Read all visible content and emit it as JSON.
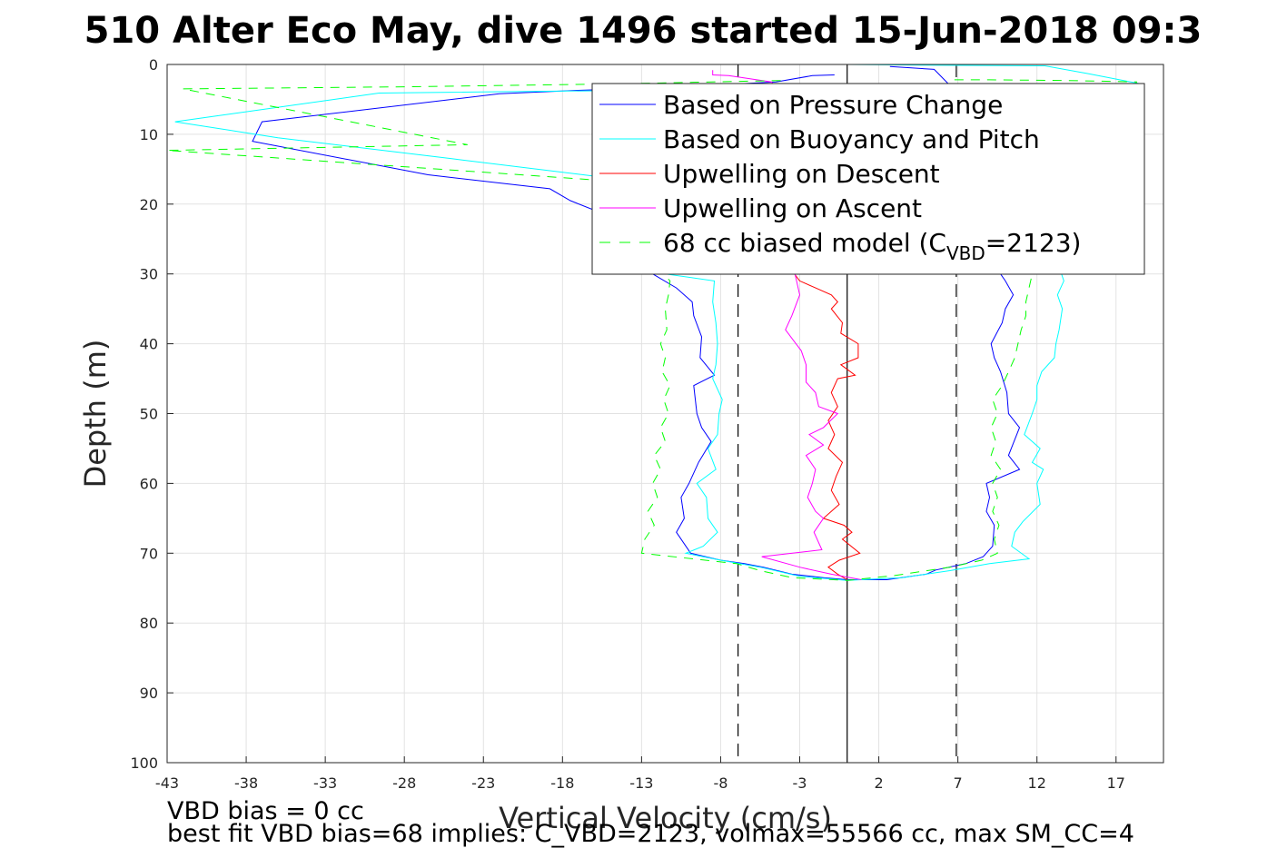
{
  "chart_data": {
    "type": "line",
    "title": "510 Alter Eco May, dive 1496 started 15-Jun-2018 09:3",
    "xlabel": "Vertical Velocity (cm/s)",
    "ylabel": "Depth (m)",
    "xlim": [
      -43,
      20
    ],
    "ylim": [
      0,
      100
    ],
    "y_reversed": true,
    "grid": true,
    "xticks": [
      -43,
      -38,
      -33,
      -28,
      -23,
      -18,
      -13,
      -8,
      -3,
      2,
      7,
      12,
      17
    ],
    "xtick_labels": [
      "-43",
      "-38",
      "-33",
      "-28",
      "-23",
      "-18",
      "-13",
      "-8",
      "-3",
      "2",
      "7",
      "12",
      "17"
    ],
    "yticks": [
      0,
      10,
      20,
      30,
      40,
      50,
      60,
      70,
      80,
      90,
      100
    ],
    "ytick_labels": [
      "0",
      "10",
      "20",
      "30",
      "40",
      "50",
      "60",
      "70",
      "80",
      "90",
      "100"
    ],
    "reference_lines": [
      {
        "x": 0,
        "style": "solid",
        "color": "#000000"
      },
      {
        "x": -6.9,
        "style": "dashed",
        "color": "#000000"
      },
      {
        "x": 6.9,
        "style": "dashed",
        "color": "#000000"
      }
    ],
    "series": [
      {
        "name": "Based on Pressure Change",
        "color": "#0000ff",
        "dash": "",
        "points": [
          [
            -0.8,
            1.5
          ],
          [
            -2.2,
            1.6
          ],
          [
            -4.5,
            2.5
          ],
          [
            -11.5,
            3.3
          ],
          [
            -17,
            3.7
          ],
          [
            -22,
            4.2
          ],
          [
            -37,
            8.2
          ],
          [
            -37.6,
            11
          ],
          [
            -26.5,
            15.8
          ],
          [
            -18.8,
            17.8
          ],
          [
            -17.5,
            19.5
          ],
          [
            -12.5,
            24
          ],
          [
            -12.3,
            30
          ],
          [
            -10.8,
            32
          ],
          [
            -9.8,
            34
          ],
          [
            -9.7,
            36
          ],
          [
            -9.2,
            39
          ],
          [
            -9.3,
            42
          ],
          [
            -8.4,
            44.5
          ],
          [
            -9.7,
            46
          ],
          [
            -9.5,
            50
          ],
          [
            -9.2,
            52
          ],
          [
            -8.6,
            54
          ],
          [
            -9.4,
            57
          ],
          [
            -10.0,
            60
          ],
          [
            -10.5,
            62
          ],
          [
            -10.3,
            65
          ],
          [
            -10.8,
            67
          ],
          [
            -9.9,
            70
          ],
          [
            -8.0,
            71
          ],
          [
            -6.5,
            71.5
          ],
          [
            -5.3,
            72
          ],
          [
            -3.5,
            73
          ],
          [
            -1.5,
            73.5
          ],
          [
            0,
            73.8
          ],
          [
            2.5,
            73.8
          ],
          [
            5,
            73
          ],
          [
            5.6,
            72.4
          ],
          [
            7.5,
            71.5
          ],
          [
            8.6,
            70.5
          ],
          [
            9.2,
            69
          ],
          [
            9.3,
            66
          ],
          [
            8.8,
            64
          ],
          [
            9.0,
            62
          ],
          [
            8.8,
            60
          ],
          [
            10.9,
            58
          ],
          [
            10.2,
            56
          ],
          [
            10.9,
            52
          ],
          [
            10.2,
            50
          ],
          [
            10.1,
            47
          ],
          [
            9.7,
            44
          ],
          [
            9.3,
            42
          ],
          [
            9.1,
            40
          ],
          [
            9.8,
            37
          ],
          [
            10.0,
            35
          ],
          [
            10.5,
            33
          ],
          [
            10.0,
            31
          ],
          [
            9.7,
            30
          ],
          [
            6.8,
            24
          ],
          [
            6.5,
            3
          ],
          [
            5.5,
            0.7
          ],
          [
            2.7,
            0.3
          ]
        ]
      },
      {
        "name": "Based on Buoyancy and Pitch",
        "color": "#00ffff",
        "dash": "",
        "points": [
          [
            -4.8,
            3.2
          ],
          [
            -9,
            3.6
          ],
          [
            -29.6,
            4.1
          ],
          [
            -42.5,
            8.2
          ],
          [
            -36,
            10.5
          ],
          [
            -25,
            13.5
          ],
          [
            -16,
            16
          ],
          [
            -14,
            18
          ],
          [
            -12.5,
            20
          ],
          [
            -11.7,
            26
          ],
          [
            -11.5,
            30
          ],
          [
            -8.4,
            31
          ],
          [
            -8.5,
            34
          ],
          [
            -8.3,
            37
          ],
          [
            -8.2,
            40
          ],
          [
            -8.3,
            43
          ],
          [
            -8.5,
            45
          ],
          [
            -7.9,
            48
          ],
          [
            -8.1,
            50
          ],
          [
            -8.2,
            53
          ],
          [
            -8.8,
            55
          ],
          [
            -8.3,
            58
          ],
          [
            -9.5,
            60
          ],
          [
            -8.9,
            62
          ],
          [
            -8.8,
            65
          ],
          [
            -8.2,
            67
          ],
          [
            -9.1,
            69
          ],
          [
            -10.2,
            70
          ],
          [
            -8.0,
            71
          ],
          [
            -5.5,
            72
          ],
          [
            -3,
            73.3
          ],
          [
            0,
            73.9
          ],
          [
            3.5,
            73.5
          ],
          [
            6.5,
            72.5
          ],
          [
            9,
            71.5
          ],
          [
            11.5,
            70.8
          ],
          [
            10.4,
            69
          ],
          [
            10.6,
            67
          ],
          [
            11.1,
            65.5
          ],
          [
            12.2,
            63
          ],
          [
            12.0,
            60
          ],
          [
            12.4,
            58
          ],
          [
            11.7,
            57
          ],
          [
            12.2,
            55
          ],
          [
            11.2,
            53
          ],
          [
            11.7,
            50
          ],
          [
            12.0,
            48
          ],
          [
            12.0,
            46
          ],
          [
            12.3,
            44
          ],
          [
            13.1,
            42
          ],
          [
            13.2,
            40
          ],
          [
            13.4,
            38
          ],
          [
            13.6,
            35
          ],
          [
            13.3,
            33
          ],
          [
            13.7,
            31
          ],
          [
            13.4,
            29
          ],
          [
            14.5,
            26
          ],
          [
            16.8,
            15
          ],
          [
            18.6,
            2.8
          ],
          [
            15.2,
            1.3
          ],
          [
            12.5,
            0.2
          ],
          [
            5,
            0.1
          ],
          [
            0,
            0
          ]
        ]
      },
      {
        "name": "Upwelling on Descent",
        "color": "#ff0000",
        "dash": "",
        "points": [
          [
            -3.5,
            29.5
          ],
          [
            -3.0,
            31
          ],
          [
            -2.0,
            32
          ],
          [
            -1.0,
            33
          ],
          [
            -0.6,
            34
          ],
          [
            -1.0,
            35
          ],
          [
            -0.3,
            37
          ],
          [
            -0.4,
            38.5
          ],
          [
            0.7,
            40
          ],
          [
            0.7,
            42
          ],
          [
            -0.4,
            43
          ],
          [
            0.5,
            44.5
          ],
          [
            -0.6,
            45
          ],
          [
            -1.0,
            47
          ],
          [
            -0.6,
            49
          ],
          [
            -1.2,
            51
          ],
          [
            -0.8,
            53
          ],
          [
            -1.2,
            55
          ],
          [
            -0.3,
            57
          ],
          [
            -0.7,
            59
          ],
          [
            -1.0,
            61
          ],
          [
            -0.5,
            63
          ],
          [
            -1.5,
            65
          ],
          [
            -0.2,
            66
          ],
          [
            0.3,
            67
          ],
          [
            -0.3,
            68
          ],
          [
            0.8,
            70
          ],
          [
            -0.5,
            71
          ],
          [
            -1.2,
            72
          ],
          [
            -0.6,
            73
          ],
          [
            0,
            73.8
          ]
        ]
      },
      {
        "name": "Upwelling on Ascent",
        "color": "#ff00ff",
        "dash": "",
        "points": [
          [
            -8.5,
            0.8
          ],
          [
            -8.5,
            1.5
          ],
          [
            -7.5,
            1.6
          ],
          [
            -4.8,
            2.5
          ],
          [
            -4.5,
            3.2
          ],
          [
            -3.3,
            30
          ],
          [
            -3.0,
            33
          ],
          [
            -3.5,
            36
          ],
          [
            -3.9,
            38
          ],
          [
            -3.4,
            39.5
          ],
          [
            -2.9,
            41
          ],
          [
            -2.6,
            43
          ],
          [
            -2.6,
            45.5
          ],
          [
            -2.0,
            47
          ],
          [
            -1.8,
            49
          ],
          [
            -0.6,
            50
          ],
          [
            -1.5,
            52
          ],
          [
            -2.4,
            53
          ],
          [
            -1.5,
            54.5
          ],
          [
            -2.6,
            56
          ],
          [
            -2.0,
            58
          ],
          [
            -2.2,
            60
          ],
          [
            -2.5,
            62
          ],
          [
            -2.0,
            64
          ],
          [
            -1.5,
            65
          ],
          [
            -2.1,
            67
          ],
          [
            -1.6,
            69.5
          ],
          [
            -5.4,
            70.5
          ],
          [
            -3.0,
            72
          ],
          [
            -1.0,
            73
          ],
          [
            0.9,
            73.8
          ]
        ]
      },
      {
        "name": "68 cc biased model (C_VBD=2123)",
        "color": "#00ff00",
        "dash": "10,8",
        "points": [
          [
            -4.2,
            2.3
          ],
          [
            -15,
            2.8
          ],
          [
            -28,
            3.2
          ],
          [
            -42,
            3.5
          ],
          [
            -24,
            11.5
          ],
          [
            -43,
            12.3
          ],
          [
            -13,
            17
          ],
          [
            -12.6,
            18
          ],
          [
            -12.4,
            20
          ],
          [
            -12.0,
            26
          ],
          [
            -11.6,
            30
          ],
          [
            -11.2,
            31
          ],
          [
            -11.3,
            33
          ],
          [
            -11.5,
            35
          ],
          [
            -11.4,
            38
          ],
          [
            -11.8,
            40
          ],
          [
            -11.5,
            42
          ],
          [
            -11.7,
            44
          ],
          [
            -11.2,
            46
          ],
          [
            -11.6,
            48
          ],
          [
            -11.3,
            50
          ],
          [
            -11.8,
            52
          ],
          [
            -11.5,
            54
          ],
          [
            -12.2,
            56
          ],
          [
            -11.8,
            58
          ],
          [
            -12.3,
            60
          ],
          [
            -12.0,
            62
          ],
          [
            -12.6,
            64
          ],
          [
            -12.2,
            66
          ],
          [
            -12.8,
            68
          ],
          [
            -13.0,
            70
          ],
          [
            -7.0,
            71.5
          ],
          [
            -5.5,
            72.5
          ],
          [
            -3.5,
            73.5
          ],
          [
            0,
            73.9
          ],
          [
            3,
            73.2
          ],
          [
            6.5,
            72
          ],
          [
            8.5,
            71
          ],
          [
            9.5,
            70
          ],
          [
            9.3,
            68
          ],
          [
            9.6,
            66
          ],
          [
            9.2,
            64
          ],
          [
            9.5,
            62
          ],
          [
            9.2,
            60
          ],
          [
            9.7,
            58
          ],
          [
            9.1,
            56
          ],
          [
            9.4,
            54
          ],
          [
            9.1,
            52
          ],
          [
            9.5,
            50
          ],
          [
            9.2,
            48
          ],
          [
            9.8,
            46
          ],
          [
            10.2,
            44
          ],
          [
            10.6,
            42
          ],
          [
            10.8,
            40
          ],
          [
            11.0,
            38
          ],
          [
            11.3,
            36
          ],
          [
            11.3,
            34
          ],
          [
            11.5,
            32
          ],
          [
            11.7,
            30
          ],
          [
            14,
            25
          ],
          [
            16.5,
            12
          ],
          [
            18.3,
            2.5
          ],
          [
            14,
            2.3
          ],
          [
            9,
            2.2
          ],
          [
            6.5,
            2.2
          ]
        ]
      }
    ],
    "legend": {
      "position": "top-right",
      "entries": [
        {
          "label": "Based on Pressure Change",
          "color": "#0000ff",
          "dash": ""
        },
        {
          "label": "Based on Buoyancy and Pitch",
          "color": "#00ffff",
          "dash": ""
        },
        {
          "label": "Upwelling on Descent",
          "color": "#ff0000",
          "dash": ""
        },
        {
          "label": "Upwelling on Ascent",
          "color": "#ff00ff",
          "dash": ""
        },
        {
          "label_main": "68 cc biased model (C",
          "label_sub": "VBD",
          "label_end": "=2123)",
          "color": "#00ff00",
          "dash": "10,8"
        }
      ]
    },
    "annotations": [
      "VBD bias = 0 cc",
      "best fit VBD bias=68 implies: C_VBD=2123, volmax=55566 cc, max SM_CC=4"
    ]
  }
}
